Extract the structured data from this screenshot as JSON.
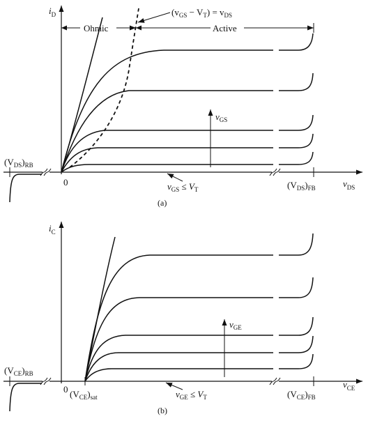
{
  "panel_a": {
    "y_axis": {
      "main": "i",
      "sub": "D"
    },
    "x_axis": {
      "main": "v",
      "sub": "DS"
    },
    "origin": "0",
    "boundary_eq": {
      "open": "(v",
      "s1": "GS",
      "minus": " − V",
      "s2": "T",
      "close": ") = v",
      "s3": "DS"
    },
    "region_ohmic": "Ohmic",
    "region_active": "Active",
    "step_var": {
      "main": "v",
      "sub": "GS"
    },
    "cutoff": {
      "v": "v",
      "s1": "GS",
      "le": " ≤ V",
      "s2": "T"
    },
    "reverse_breakdown": {
      "open": "(V",
      "s1": "DS",
      "close": ")",
      "s2": "RB"
    },
    "forward_breakdown": {
      "open": "(V",
      "s1": "DS",
      "close": ")",
      "s2": "FB"
    },
    "caption": "(a)"
  },
  "panel_b": {
    "y_axis": {
      "main": "i",
      "sub": "C"
    },
    "x_axis": {
      "main": "v",
      "sub": "CE"
    },
    "origin": "0",
    "step_var": {
      "main": "v",
      "sub": "GE"
    },
    "cutoff": {
      "v": "v",
      "s1": "GE",
      "le": " ≤ V",
      "s2": "T"
    },
    "sat_voltage": {
      "open": "(V",
      "s1": "CE",
      "close": ")",
      "s2": "sat"
    },
    "reverse_breakdown": {
      "open": "(V",
      "s1": "CE",
      "close": ")",
      "s2": "RB"
    },
    "forward_breakdown": {
      "open": "(V",
      "s1": "CE",
      "close": ")",
      "s2": "FB"
    },
    "caption": "(b)"
  }
}
